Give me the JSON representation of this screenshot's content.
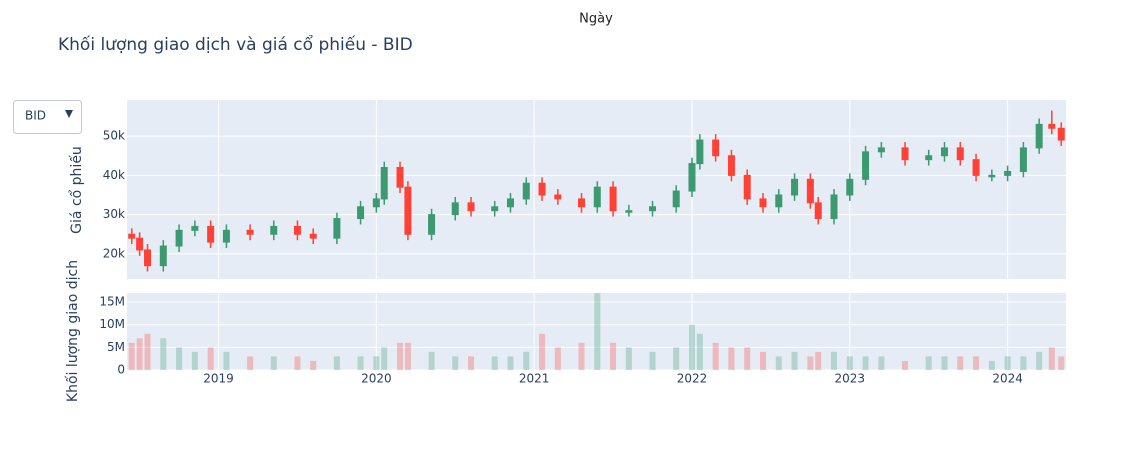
{
  "dropdown": {
    "selected": "BID"
  },
  "chart_data": [
    {
      "type": "candlestick",
      "title": "Khối lượng giao dịch và giá cổ phiếu - BID",
      "x_title": "Ngày",
      "y_title": "Giá cổ phiếu",
      "x": [
        2018.45,
        2018.5,
        2018.55,
        2018.65,
        2018.75,
        2018.85,
        2018.95,
        2019.05,
        2019.2,
        2019.35,
        2019.5,
        2019.6,
        2019.75,
        2019.9,
        2020.0,
        2020.05,
        2020.15,
        2020.2,
        2020.35,
        2020.5,
        2020.6,
        2020.75,
        2020.85,
        2020.95,
        2021.05,
        2021.15,
        2021.3,
        2021.4,
        2021.5,
        2021.6,
        2021.75,
        2021.9,
        2022.0,
        2022.05,
        2022.15,
        2022.25,
        2022.35,
        2022.45,
        2022.55,
        2022.65,
        2022.75,
        2022.8,
        2022.9,
        2023.0,
        2023.1,
        2023.2,
        2023.35,
        2023.5,
        2023.6,
        2023.7,
        2023.8,
        2023.9,
        2024.0,
        2024.1,
        2024.2,
        2024.28,
        2024.34
      ],
      "open": [
        25000,
        24000,
        21000,
        17000,
        22000,
        26000,
        27000,
        23000,
        26000,
        25000,
        27000,
        25000,
        24000,
        29000,
        32000,
        34000,
        42000,
        37000,
        25000,
        30000,
        33000,
        31000,
        32000,
        34000,
        38000,
        35000,
        34000,
        32000,
        37000,
        31000,
        31000,
        32000,
        36000,
        43000,
        49000,
        45000,
        40000,
        34000,
        32000,
        35000,
        39000,
        33000,
        29000,
        35000,
        39000,
        46000,
        47000,
        44000,
        45000,
        47000,
        44000,
        40000,
        40000,
        41000,
        47000,
        53000,
        52000
      ],
      "high": [
        26500,
        25500,
        22500,
        23500,
        27500,
        28500,
        28500,
        27500,
        27500,
        28500,
        28500,
        26500,
        30500,
        33500,
        35500,
        43500,
        43500,
        38500,
        31500,
        34500,
        34500,
        33500,
        35500,
        39500,
        39500,
        36500,
        35500,
        38500,
        38500,
        32500,
        33500,
        37500,
        44500,
        50500,
        50500,
        46500,
        41500,
        35500,
        36500,
        40500,
        40500,
        34500,
        36500,
        40500,
        47500,
        48500,
        48500,
        46500,
        48500,
        48500,
        45500,
        41500,
        42500,
        48500,
        54500,
        56500,
        53500
      ],
      "low": [
        22500,
        19500,
        15500,
        15500,
        20500,
        24500,
        21500,
        21500,
        23500,
        23500,
        23500,
        22500,
        22500,
        27500,
        30500,
        32500,
        35500,
        23500,
        23500,
        28500,
        29500,
        29500,
        30500,
        32500,
        33500,
        32500,
        30500,
        30500,
        29500,
        29500,
        29500,
        30500,
        34500,
        41500,
        43500,
        38500,
        32500,
        30500,
        30500,
        33500,
        31500,
        27500,
        27500,
        33500,
        37500,
        44500,
        42500,
        42500,
        43500,
        42500,
        38500,
        38500,
        38500,
        39500,
        45500,
        50500,
        47500
      ],
      "close": [
        24000,
        21000,
        17000,
        22000,
        26000,
        27000,
        23000,
        26000,
        25000,
        27000,
        25000,
        24000,
        29000,
        32000,
        34000,
        42000,
        37000,
        25000,
        30000,
        33000,
        31000,
        32000,
        34000,
        38000,
        35000,
        34000,
        32000,
        37000,
        31000,
        31000,
        32000,
        36000,
        43000,
        49000,
        45000,
        40000,
        34000,
        32000,
        35000,
        39000,
        33000,
        29000,
        35000,
        39000,
        46000,
        47000,
        44000,
        45000,
        47000,
        44000,
        40000,
        40000,
        41000,
        47000,
        53000,
        52000,
        49000
      ],
      "increasing_color": "#3d9970",
      "decreasing_color": "#ff4136",
      "xlim": [
        2018.42,
        2024.37
      ],
      "xticks": [
        2019,
        2020,
        2021,
        2022,
        2023,
        2024
      ],
      "ylim": [
        13600,
        59200
      ],
      "yticks": [
        {
          "value": 20000,
          "label": "20k"
        },
        {
          "value": 30000,
          "label": "30k"
        },
        {
          "value": 40000,
          "label": "40k"
        },
        {
          "value": 50000,
          "label": "50k"
        }
      ],
      "grid": true
    },
    {
      "type": "bar",
      "y_title": "Khối lượng giao dịch",
      "x": [
        2018.45,
        2018.5,
        2018.55,
        2018.65,
        2018.75,
        2018.85,
        2018.95,
        2019.05,
        2019.2,
        2019.35,
        2019.5,
        2019.6,
        2019.75,
        2019.9,
        2020.0,
        2020.05,
        2020.15,
        2020.2,
        2020.35,
        2020.5,
        2020.6,
        2020.75,
        2020.85,
        2020.95,
        2021.05,
        2021.15,
        2021.3,
        2021.4,
        2021.5,
        2021.6,
        2021.75,
        2021.9,
        2022.0,
        2022.05,
        2022.15,
        2022.25,
        2022.35,
        2022.45,
        2022.55,
        2022.65,
        2022.75,
        2022.8,
        2022.9,
        2023.0,
        2023.1,
        2023.2,
        2023.35,
        2023.5,
        2023.6,
        2023.7,
        2023.8,
        2023.9,
        2024.0,
        2024.1,
        2024.2,
        2024.28,
        2024.34
      ],
      "values": [
        6000000,
        7000000,
        8000000,
        7000000,
        5000000,
        4000000,
        5000000,
        4000000,
        3000000,
        3000000,
        3000000,
        2000000,
        3000000,
        3000000,
        3000000,
        5000000,
        6000000,
        6000000,
        4000000,
        3000000,
        3000000,
        3000000,
        3000000,
        4000000,
        8000000,
        5000000,
        6000000,
        17000000,
        6000000,
        5000000,
        4000000,
        5000000,
        10000000,
        8000000,
        6000000,
        5000000,
        5000000,
        4000000,
        3000000,
        4000000,
        3000000,
        4000000,
        4000000,
        3000000,
        3000000,
        3000000,
        2000000,
        3000000,
        3000000,
        3000000,
        3000000,
        2000000,
        3000000,
        3000000,
        4000000,
        5000000,
        3000000
      ],
      "increasing_color": "#3d9970",
      "decreasing_color": "#ff4136",
      "xlim": [
        2018.42,
        2024.37
      ],
      "xticks": [
        2019,
        2020,
        2021,
        2022,
        2023,
        2024
      ],
      "ylim": [
        0,
        17000000
      ],
      "yticks": [
        0,
        {
          "value": 5000000,
          "label": "5M"
        },
        {
          "value": 10000000,
          "label": "10M"
        },
        {
          "value": 15000000,
          "label": "15M"
        }
      ],
      "grid": true
    }
  ]
}
